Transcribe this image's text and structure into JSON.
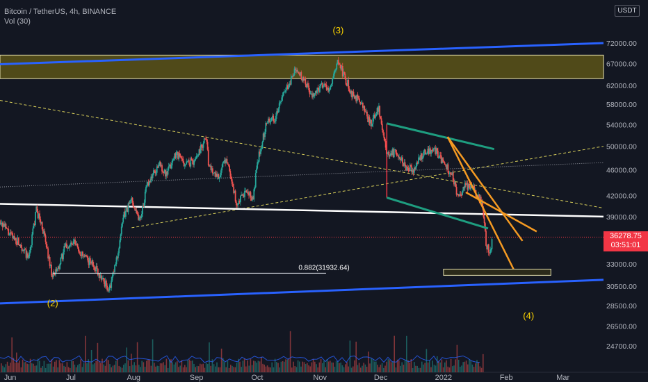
{
  "header": {
    "symbol": "Bitcoin / TetherUS, 4h, BINANCE",
    "indicator": "Vol (30)",
    "currency": "USDT"
  },
  "last_price": {
    "value": "36278.75",
    "countdown": "03:51:01"
  },
  "colors": {
    "background": "#131722",
    "up": "#26a69a",
    "down": "#ef5350",
    "channel": "#2962ff",
    "zone_fill": "#5c5418",
    "zone_border": "#e8e3b0",
    "label_yellow": "#ffd600",
    "orange": "#f59a22",
    "green": "#1e9e80",
    "white_line": "#ffffff",
    "dashed": "#d8cf5a",
    "dotted": "#9598a1"
  },
  "chart_data": {
    "type": "candlestick",
    "scale": "log",
    "x_tick_labels": [
      "Jun",
      "Jul",
      "Aug",
      "Sep",
      "Oct",
      "Nov",
      "Dec",
      "2022",
      "Feb",
      "Mar"
    ],
    "x_range": [
      "2021-05-27",
      "2022-03-21"
    ],
    "y_tick_labels": [
      "72000.00",
      "67000.00",
      "62000.00",
      "58000.00",
      "54000.00",
      "50000.00",
      "46000.00",
      "42000.00",
      "39000.00",
      "33000.00",
      "30500.00",
      "28500.00",
      "26500.00",
      "24700.00"
    ],
    "y_range": [
      24000,
      78000
    ],
    "volume_axis_label": "",
    "price_series": [
      [
        "2021-05-27",
        38500
      ],
      [
        "2021-06-01",
        36500
      ],
      [
        "2021-06-06",
        35500
      ],
      [
        "2021-06-10",
        33500
      ],
      [
        "2021-06-14",
        40000
      ],
      [
        "2021-06-17",
        37500
      ],
      [
        "2021-06-22",
        31500
      ],
      [
        "2021-06-25",
        32500
      ],
      [
        "2021-06-28",
        35000
      ],
      [
        "2021-07-03",
        35500
      ],
      [
        "2021-07-07",
        33800
      ],
      [
        "2021-07-12",
        33000
      ],
      [
        "2021-07-16",
        31500
      ],
      [
        "2021-07-20",
        30000
      ],
      [
        "2021-07-24",
        34000
      ],
      [
        "2021-07-27",
        39000
      ],
      [
        "2021-07-31",
        41500
      ],
      [
        "2021-08-04",
        38500
      ],
      [
        "2021-08-08",
        44000
      ],
      [
        "2021-08-14",
        47000
      ],
      [
        "2021-08-17",
        45000
      ],
      [
        "2021-08-22",
        49000
      ],
      [
        "2021-08-26",
        47000
      ],
      [
        "2021-08-31",
        47500
      ],
      [
        "2021-09-06",
        52000
      ],
      [
        "2021-09-07",
        46500
      ],
      [
        "2021-09-12",
        45000
      ],
      [
        "2021-09-16",
        48000
      ],
      [
        "2021-09-21",
        40500
      ],
      [
        "2021-09-25",
        42500
      ],
      [
        "2021-09-29",
        41500
      ],
      [
        "2021-10-01",
        47000
      ],
      [
        "2021-10-06",
        55000
      ],
      [
        "2021-10-10",
        55500
      ],
      [
        "2021-10-15",
        61000
      ],
      [
        "2021-10-20",
        65500
      ],
      [
        "2021-10-25",
        62500
      ],
      [
        "2021-10-28",
        59500
      ],
      [
        "2021-11-02",
        62000
      ],
      [
        "2021-11-06",
        61000
      ],
      [
        "2021-11-10",
        67500
      ],
      [
        "2021-11-13",
        64000
      ],
      [
        "2021-11-17",
        60000
      ],
      [
        "2021-11-21",
        58500
      ],
      [
        "2021-11-26",
        54000
      ],
      [
        "2021-11-30",
        57500
      ],
      [
        "2021-12-04",
        48500
      ],
      [
        "2021-12-09",
        49000
      ],
      [
        "2021-12-13",
        46500
      ],
      [
        "2021-12-17",
        46000
      ],
      [
        "2021-12-22",
        48800
      ],
      [
        "2021-12-28",
        49200
      ],
      [
        "2022-01-01",
        47000
      ],
      [
        "2022-01-05",
        45500
      ],
      [
        "2022-01-08",
        41800
      ],
      [
        "2022-01-12",
        43500
      ],
      [
        "2022-01-16",
        43000
      ],
      [
        "2022-01-20",
        41000
      ],
      [
        "2022-01-22",
        35500
      ],
      [
        "2022-01-24",
        34000
      ],
      [
        "2022-01-25",
        36300
      ]
    ],
    "annotations": [
      {
        "id": "wave_2",
        "text": "(2)",
        "at": [
          "2021-06-22",
          28400
        ]
      },
      {
        "id": "wave_3",
        "text": "(3)",
        "at": [
          "2021-11-10",
          74500
        ]
      },
      {
        "id": "wave_4",
        "text": "(4)",
        "at": [
          "2022-02-12",
          27200
        ]
      },
      {
        "id": "fib_label",
        "text": "0.882(31932.64)",
        "at": [
          "2021-11-03",
          32300
        ]
      }
    ],
    "drawings": {
      "resistance_zone": {
        "from": "2021-05-27",
        "to": "2022-03-21",
        "y": [
          63500,
          69000
        ]
      },
      "upper_channel": [
        [
          "2021-05-27",
          66800
        ],
        [
          "2022-03-21",
          72000
        ]
      ],
      "lower_channel": [
        [
          "2021-05-27",
          28700
        ],
        [
          "2022-03-21",
          31200
        ]
      ],
      "white_support": [
        [
          "2021-05-27",
          40800
        ],
        [
          "2022-03-21",
          39000
        ]
      ],
      "dashed_down": [
        [
          "2021-05-27",
          58800
        ],
        [
          "2022-03-21",
          40200
        ]
      ],
      "dashed_up": [
        [
          "2021-07-31",
          37500
        ],
        [
          "2022-03-21",
          50000
        ]
      ],
      "dotted_line": [
        [
          "2021-05-27",
          43300
        ],
        [
          "2022-03-21",
          47200
        ]
      ],
      "fib_line": [
        [
          "2021-06-22",
          31932.64
        ],
        [
          "2021-11-04",
          31932.64
        ]
      ],
      "green_upper": [
        [
          "2021-12-04",
          54200
        ],
        [
          "2022-01-26",
          49500
        ]
      ],
      "green_lower": [
        [
          "2021-12-04",
          41700
        ],
        [
          "2022-01-23",
          37400
        ]
      ],
      "red_drop": [
        [
          "2021-12-04",
          54200
        ],
        [
          "2021-12-04",
          41700
        ]
      ],
      "orange_1": [
        [
          "2022-01-03",
          51700
        ],
        [
          "2022-02-09",
          35800
        ]
      ],
      "orange_2": [
        [
          "2022-01-03",
          51700
        ],
        [
          "2022-02-05",
          32200
        ]
      ],
      "orange_3": [
        [
          "2022-01-12",
          42500
        ],
        [
          "2022-02-16",
          37000
        ]
      ],
      "target_box": {
        "from": "2022-01-01",
        "to": "2022-02-23",
        "y": [
          31700,
          32400
        ]
      },
      "red_price_line": 36278.75
    }
  }
}
